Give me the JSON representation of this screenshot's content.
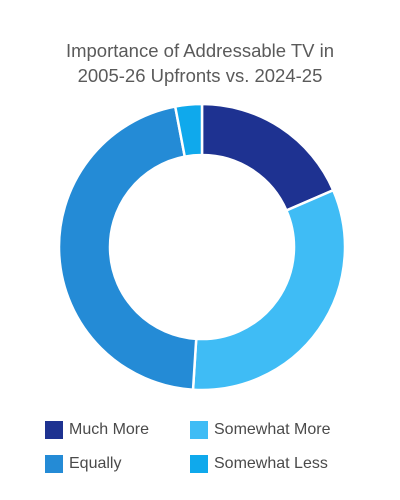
{
  "chart_data": {
    "type": "pie",
    "donut": true,
    "title_lines": [
      "Importance of Addressable TV in",
      "2005-26 Upfronts vs. 2024-25"
    ],
    "categories": [
      "Much More",
      "Somewhat More",
      "Equally",
      "Somewhat Less"
    ],
    "values": [
      18.5,
      32.5,
      46,
      3
    ],
    "colors": [
      "#1e3291",
      "#3fbcf5",
      "#248bd6",
      "#0fa9ec"
    ],
    "slice_order": [
      "Much More",
      "Somewhat More",
      "Equally",
      "Somewhat Less"
    ],
    "legend_position": "bottom",
    "legend_order": [
      "Much More",
      "Somewhat More",
      "Equally",
      "Somewhat Less"
    ]
  }
}
